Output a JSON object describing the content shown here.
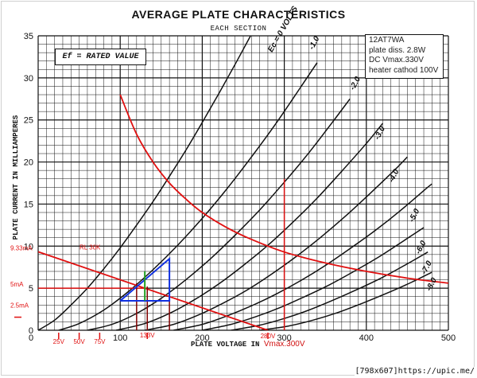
{
  "title": "AVERAGE PLATE CHARACTERISTICS",
  "subtitle": "EACH SECTION",
  "ef_label": "Ef = RATED VALUE",
  "info_lines": [
    "12AT7WA",
    "plate diss. 2.8W",
    "DC Vmax.330V",
    "heater cathod 100V"
  ],
  "watermark": "[798x607]https://upic.me/",
  "colors": {
    "grid": "#111111",
    "curve": "#111111",
    "red": "#e01010",
    "blue": "#1030e0",
    "green": "#20a020"
  },
  "chart_data": {
    "type": "line",
    "title": "AVERAGE PLATE CHARACTERISTICS",
    "subtitle": "EACH SECTION",
    "xlabel": "PLATE VOLTAGE IN",
    "xlabel_suffix": "Vmax.300V",
    "ylabel": "PLATE CURRENT IN MILLIAMPERES",
    "xlim": [
      0,
      500
    ],
    "ylim": [
      0,
      35
    ],
    "grid": true,
    "x_ticks": [
      0,
      100,
      200,
      300,
      400,
      500
    ],
    "y_ticks": [
      0,
      5,
      10,
      15,
      20,
      25,
      30,
      35
    ],
    "tube_curves": [
      {
        "label": "Ec=0 VOLTS",
        "x": [
          0,
          20,
          40,
          60,
          80,
          100,
          120,
          140,
          160,
          180,
          200,
          220,
          240,
          260,
          270
        ],
        "y": [
          0,
          1.2,
          3.0,
          5.0,
          7.3,
          9.8,
          12.5,
          15.3,
          18.3,
          21.4,
          24.7,
          28.1,
          31.6,
          35.2,
          37.0
        ]
      },
      {
        "label": "-1.0",
        "x": [
          25,
          50,
          80,
          110,
          140,
          170,
          200,
          230,
          260,
          290,
          320,
          340
        ],
        "y": [
          0,
          0.8,
          2.4,
          4.6,
          7.2,
          10.1,
          13.3,
          16.8,
          20.6,
          24.6,
          28.9,
          31.8
        ]
      },
      {
        "label": "-2.0",
        "x": [
          60,
          90,
          120,
          150,
          180,
          210,
          240,
          270,
          300,
          330,
          360,
          380
        ],
        "y": [
          0,
          0.7,
          2.0,
          3.8,
          6.0,
          8.5,
          11.3,
          14.3,
          17.6,
          21.1,
          24.9,
          27.5
        ]
      },
      {
        "label": "-3.0",
        "x": [
          95,
          130,
          160,
          190,
          220,
          250,
          280,
          310,
          340,
          370,
          400,
          420
        ],
        "y": [
          0,
          0.8,
          2.0,
          3.6,
          5.5,
          7.7,
          10.1,
          12.8,
          15.7,
          18.9,
          22.2,
          24.6
        ]
      },
      {
        "label": "-4.0",
        "x": [
          130,
          165,
          195,
          225,
          255,
          285,
          315,
          345,
          375,
          405,
          435,
          450
        ],
        "y": [
          0,
          0.7,
          1.8,
          3.2,
          4.8,
          6.7,
          8.8,
          11.1,
          13.6,
          16.3,
          19.1,
          20.6
        ]
      },
      {
        "label": "-5.0",
        "x": [
          165,
          200,
          230,
          260,
          290,
          320,
          350,
          380,
          410,
          440,
          470,
          480
        ],
        "y": [
          0,
          0.7,
          1.7,
          2.9,
          4.3,
          5.9,
          7.7,
          9.7,
          11.8,
          14.1,
          16.6,
          17.4
        ]
      },
      {
        "label": "-6.0",
        "x": [
          200,
          235,
          265,
          295,
          325,
          355,
          385,
          415,
          445,
          470
        ],
        "y": [
          0,
          0.7,
          1.6,
          2.7,
          4.0,
          5.4,
          7.0,
          8.7,
          10.6,
          12.2
        ]
      },
      {
        "label": "-7.0",
        "x": [
          235,
          270,
          300,
          330,
          360,
          390,
          420,
          450,
          475
        ],
        "y": [
          0,
          0.6,
          1.4,
          2.4,
          3.6,
          4.9,
          6.3,
          7.9,
          9.3
        ]
      },
      {
        "label": "-8.0",
        "x": [
          270,
          305,
          335,
          365,
          395,
          425,
          455,
          480
        ],
        "y": [
          0,
          0.5,
          1.2,
          2.1,
          3.2,
          4.4,
          5.7,
          6.9
        ]
      }
    ],
    "curve_labels": [
      {
        "text": "Ec = 0 VOLTS",
        "x": 285,
        "y": 33
      },
      {
        "text": "-1.0",
        "x": 335,
        "y": 33.3
      },
      {
        "text": "-2.0",
        "x": 385,
        "y": 28.5
      },
      {
        "text": "-3.0",
        "x": 415,
        "y": 22.6
      },
      {
        "text": "-4.0",
        "x": 432,
        "y": 17.5
      },
      {
        "text": "-5.0",
        "x": 457,
        "y": 12.8
      },
      {
        "text": "-6.0",
        "x": 465,
        "y": 9.0
      },
      {
        "text": "-7.0",
        "x": 472,
        "y": 6.6
      },
      {
        "text": "-8.0",
        "x": 478,
        "y": 4.6
      }
    ],
    "annotations": {
      "dissipation_curve": {
        "x": [
          100,
          120,
          140,
          160,
          180,
          200,
          230,
          260,
          300,
          350,
          400,
          450,
          500
        ],
        "y": [
          28.0,
          23.3,
          20.0,
          17.5,
          15.6,
          14.0,
          12.2,
          10.8,
          9.3,
          8.0,
          7.0,
          6.2,
          5.6
        ]
      },
      "load_line": {
        "label": "RL 30K",
        "x": [
          0,
          280
        ],
        "y": [
          9.33,
          0
        ]
      },
      "bias_line": {
        "x": [
          0,
          133
        ],
        "y": [
          5,
          5
        ]
      },
      "vmax_line": {
        "x": [
          300,
          300
        ],
        "y": [
          0,
          18
        ]
      },
      "quiescent_verticals": {
        "x": [
          120,
          133,
          160
        ],
        "ylow": 0,
        "yhigh": [
          5.6,
          5.2,
          3.9
        ]
      },
      "blue_triangle": {
        "x": [
          100,
          160,
          160,
          100
        ],
        "y": [
          3.5,
          8.5,
          3.5,
          3.5
        ]
      },
      "green_line": {
        "x": [
          130,
          130
        ],
        "y": [
          3.5,
          7.0
        ]
      },
      "left_labels": [
        {
          "text": "9.33mA",
          "y": 9.33
        },
        {
          "text": "5mA",
          "y": 5
        },
        {
          "text": "2.5mA",
          "y": 2.5
        }
      ],
      "bottom_labels": [
        {
          "text": "25V",
          "x": 25
        },
        {
          "text": "50V",
          "x": 50
        },
        {
          "text": "75V",
          "x": 75
        },
        {
          "text": "133V",
          "x": 133
        },
        {
          "text": "280V",
          "x": 280
        }
      ]
    }
  }
}
